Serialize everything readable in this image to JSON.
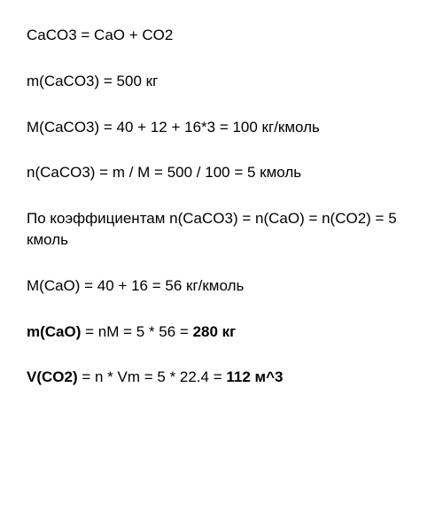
{
  "lines": [
    {
      "text": "CaCO3 = CaO + CO2",
      "bold_parts": []
    },
    {
      "text": "m(CaCO3) = 500 кг",
      "bold_parts": []
    },
    {
      "text": "M(CaCO3) = 40 + 12 + 16*3 = 100 кг/кмоль",
      "bold_parts": []
    },
    {
      "text": "n(CaCO3) = m / M = 500 / 100 = 5 кмоль",
      "bold_parts": []
    },
    {
      "text": "По коэффициентам n(CaCO3) = n(CaO) = n(CO2) = 5 кмоль",
      "bold_parts": []
    },
    {
      "text": "M(CaO) = 40 + 16 = 56 кг/кмоль",
      "bold_parts": []
    },
    {
      "prefix": "m(CaO)",
      "middle": " = nM = 5 * 56 = ",
      "suffix": "280 кг",
      "has_bold": true
    },
    {
      "prefix": "V(CO2)",
      "middle": " = n * Vm = 5 * 22.4 = ",
      "suffix": "112 м^3",
      "has_bold": true
    }
  ],
  "styling": {
    "background_color": "#ffffff",
    "text_color": "#000000",
    "font_size": 17,
    "line_spacing": 28,
    "font_family": "Arial"
  }
}
